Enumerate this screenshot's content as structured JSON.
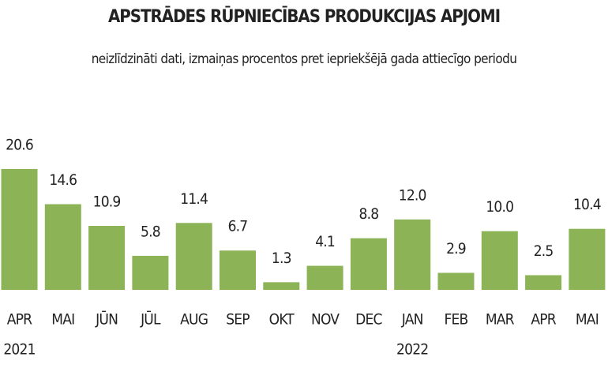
{
  "chart_data": {
    "type": "bar",
    "title": "APSTRĀDES RŪPNIECĪBAS PRODUKCIJAS APJOMI",
    "subtitle": "neizlīdzināti dati, izmaiņas procentos pret iepriekšējā gada attiecīgo periodu",
    "categories": [
      "APR",
      "MAI",
      "JŪN",
      "JŪL",
      "AUG",
      "SEP",
      "OKT",
      "NOV",
      "DEC",
      "JAN",
      "FEB",
      "MAR",
      "APR",
      "MAI"
    ],
    "years": [
      "2021",
      null,
      null,
      null,
      null,
      null,
      null,
      null,
      null,
      "2022",
      null,
      null,
      null,
      null
    ],
    "values": [
      20.6,
      14.6,
      10.9,
      5.8,
      11.4,
      6.7,
      1.3,
      4.1,
      8.8,
      12.0,
      2.9,
      10.0,
      2.5,
      10.4
    ],
    "value_labels": [
      "20.6",
      "14.6",
      "10.9",
      "5.8",
      "11.4",
      "6.7",
      "1.3",
      "4.1",
      "8.8",
      "12.0",
      "2.9",
      "10.0",
      "2.5",
      "10.4"
    ],
    "color": "#8cb356"
  }
}
